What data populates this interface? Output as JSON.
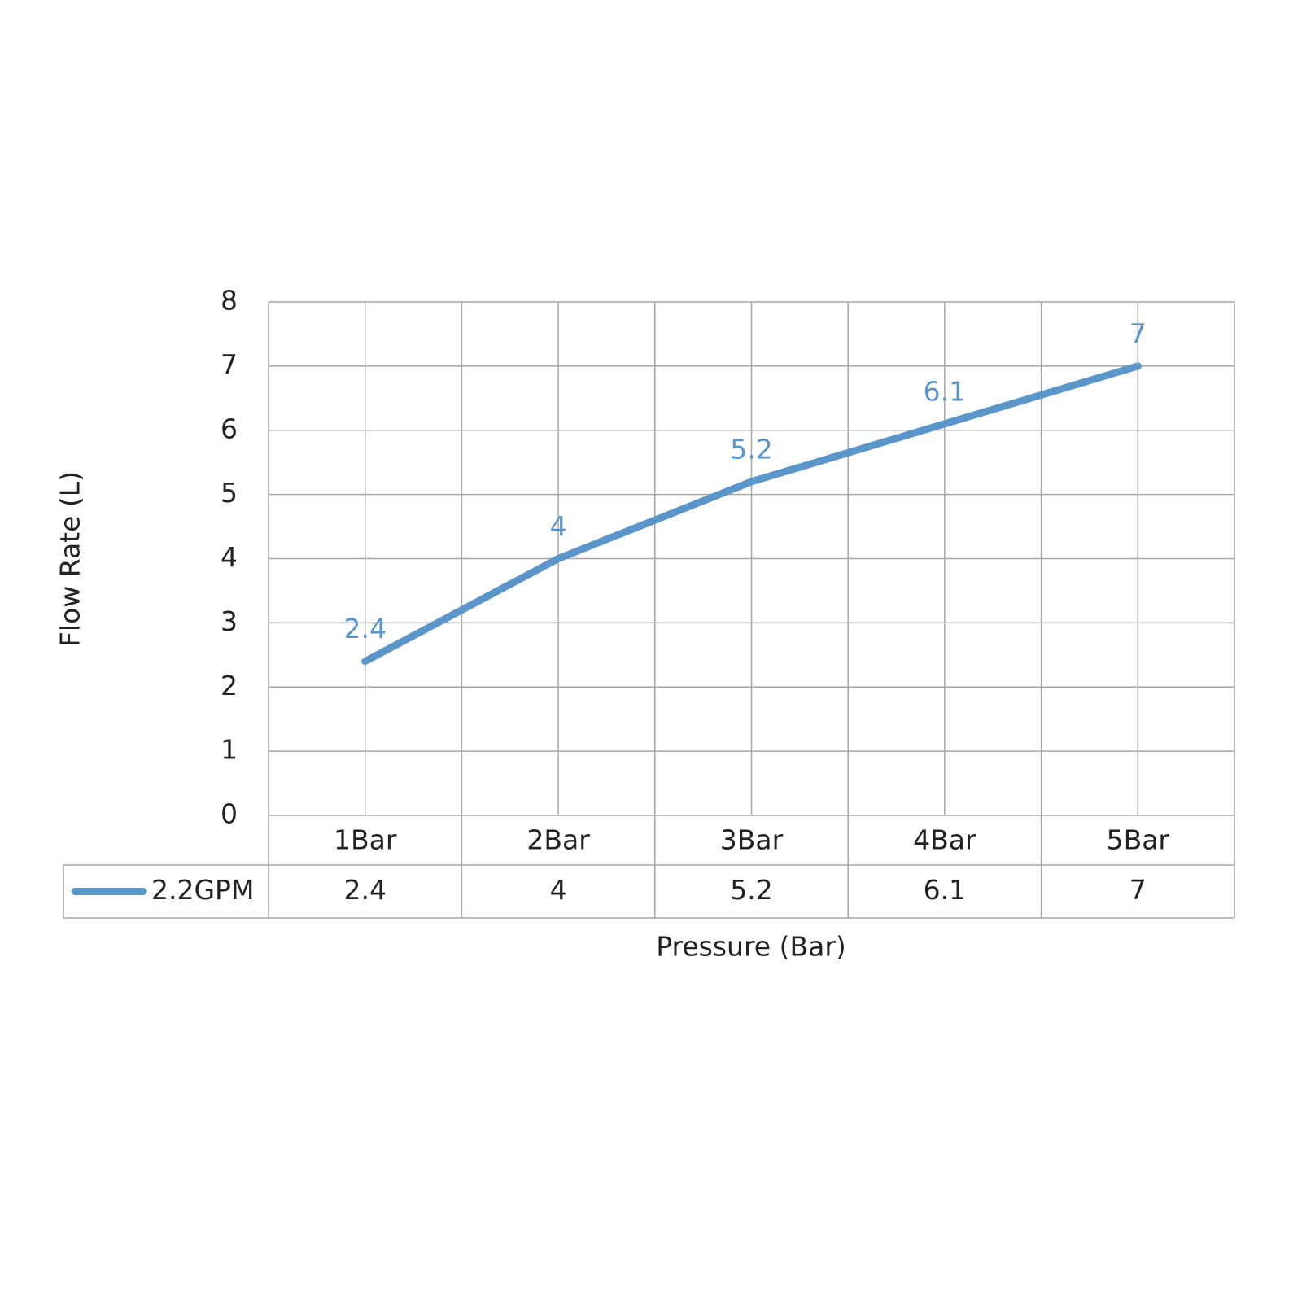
{
  "chart_data": {
    "type": "line",
    "x_label": "Pressure (Bar)",
    "y_label": "Flow Rate (L)",
    "categories": [
      "1Bar",
      "2Bar",
      "3Bar",
      "4Bar",
      "5Bar"
    ],
    "series": [
      {
        "name": "2.2GPM",
        "color": "#5b96cb",
        "values": [
          2.4,
          4,
          5.2,
          6.1,
          7
        ]
      }
    ],
    "ylim": [
      0,
      8
    ],
    "yticks": [
      0,
      1,
      2,
      3,
      4,
      5,
      6,
      7,
      8
    ],
    "grid": true,
    "data_labels": true,
    "data_table": true
  }
}
